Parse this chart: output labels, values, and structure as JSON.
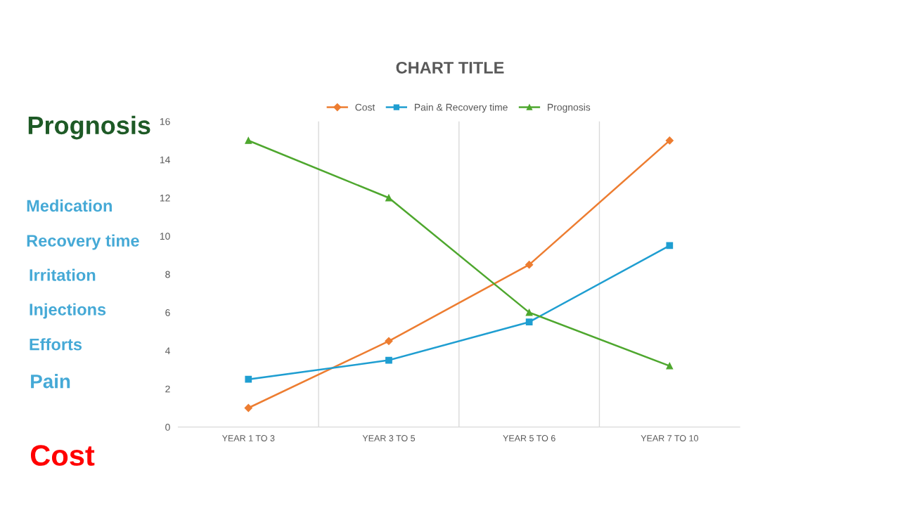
{
  "chart_data": {
    "type": "line",
    "title": "CHART TITLE",
    "categories": [
      "YEAR 1 TO 3",
      "YEAR 3 TO 5",
      "YEAR 5 TO 6",
      "YEAR 7 TO 10"
    ],
    "series": [
      {
        "name": "Cost",
        "color": "#ed7d31",
        "marker": "diamond",
        "values": [
          1,
          4.5,
          8.5,
          15
        ]
      },
      {
        "name": "Pain & Recovery time",
        "color": "#1f9ed1",
        "marker": "square",
        "values": [
          2.5,
          3.5,
          5.5,
          9.5
        ]
      },
      {
        "name": "Prognosis",
        "color": "#4ea72e",
        "marker": "triangle",
        "values": [
          15,
          12,
          6,
          3.2
        ]
      }
    ],
    "ylim": [
      0,
      16
    ],
    "yticks": [
      0,
      2,
      4,
      6,
      8,
      10,
      12,
      14,
      16
    ],
    "grid": "x",
    "legend": "top",
    "line_style": "solid",
    "annotations": [
      "Prognosis",
      "Medication",
      "Recovery time",
      "Irritation",
      "Injections",
      "Efforts",
      "Pain",
      "Cost"
    ]
  }
}
